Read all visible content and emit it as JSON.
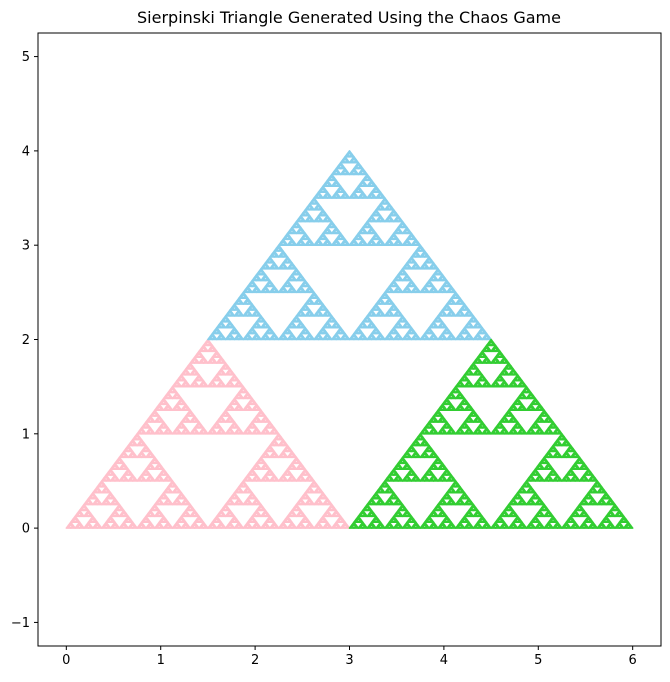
{
  "chart_data": {
    "type": "scatter",
    "title": "Sierpinski Triangle Generated Using the Chaos Game",
    "xlabel": "",
    "ylabel": "",
    "xlim": [
      -0.3,
      6.3
    ],
    "ylim": [
      -1.25,
      5.25
    ],
    "xticks": [
      0,
      1,
      2,
      3,
      4,
      5,
      6
    ],
    "yticks": [
      -1,
      0,
      1,
      2,
      3,
      4,
      5
    ],
    "grid": false,
    "legend": "none",
    "series": [
      {
        "color": "#FFC0CB",
        "vertices": [
          [
            0,
            0
          ],
          [
            3,
            0
          ],
          [
            1.5,
            2
          ]
        ],
        "depth": 6
      },
      {
        "color": "#87CEEB",
        "vertices": [
          [
            1.5,
            2
          ],
          [
            4.5,
            2
          ],
          [
            3,
            4
          ]
        ],
        "depth": 6
      },
      {
        "color": "#32CD32",
        "vertices": [
          [
            3,
            0
          ],
          [
            6,
            0
          ],
          [
            4.5,
            2
          ]
        ],
        "depth": 6
      }
    ]
  }
}
